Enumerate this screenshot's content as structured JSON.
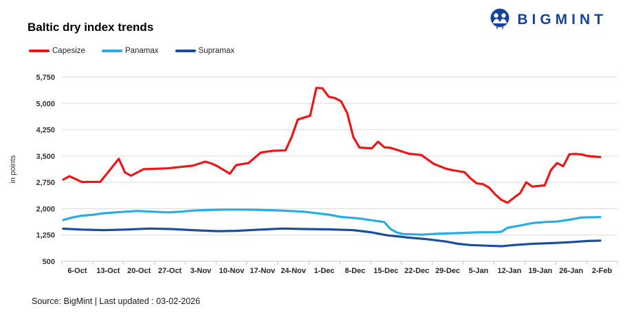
{
  "logo": {
    "text": "BIGMINT",
    "icon": "bigmint-emblem"
  },
  "title": "Baltic dry index trends",
  "footer": {
    "text": "Source: BigMint | Last updated : 03-02-2026"
  },
  "chart_data": {
    "type": "line",
    "title": "Baltic dry index trends",
    "xlabel": "",
    "ylabel": "in points",
    "ylim": [
      500,
      5750
    ],
    "ytick_step": 750,
    "ytick_labels": [
      "500",
      "1,250",
      "2,000",
      "2,750",
      "3,500",
      "4,250",
      "5,000",
      "5,750"
    ],
    "categories": [
      "6-Oct",
      "13-Oct",
      "20-Oct",
      "27-Oct",
      "3-Nov",
      "10-Nov",
      "17-Nov",
      "24-Nov",
      "1-Dec",
      "8-Dec",
      "15-Dec",
      "22-Dec",
      "29-Dec",
      "5-Jan",
      "12-Jan",
      "19-Jan",
      "26-Jan",
      "2-Feb"
    ],
    "x_unit": "trading days, 0 = chart start (early Oct), 87 = 2-Feb; weekly tick labels",
    "grid": "horizontal",
    "legend_position": "top-left",
    "gridline_color": "#D9D9D9",
    "axis_text_color": "#333333",
    "series": [
      {
        "name": "Capesize",
        "color": "#ED1515",
        "points": [
          [
            0,
            2830
          ],
          [
            1,
            2925
          ],
          [
            3,
            2760
          ],
          [
            6,
            2765
          ],
          [
            9,
            3420
          ],
          [
            10,
            3030
          ],
          [
            11,
            2940
          ],
          [
            13,
            3125
          ],
          [
            17,
            3150
          ],
          [
            19,
            3190
          ],
          [
            21,
            3225
          ],
          [
            23,
            3340
          ],
          [
            24,
            3290
          ],
          [
            25,
            3210
          ],
          [
            27,
            2995
          ],
          [
            28,
            3240
          ],
          [
            30,
            3300
          ],
          [
            32,
            3600
          ],
          [
            34,
            3650
          ],
          [
            36,
            3660
          ],
          [
            37,
            4040
          ],
          [
            38,
            4540
          ],
          [
            40,
            4650
          ],
          [
            41,
            5440
          ],
          [
            42,
            5430
          ],
          [
            43,
            5190
          ],
          [
            44,
            5150
          ],
          [
            45,
            5060
          ],
          [
            46,
            4730
          ],
          [
            47,
            4040
          ],
          [
            48,
            3740
          ],
          [
            50,
            3720
          ],
          [
            51,
            3910
          ],
          [
            52,
            3750
          ],
          [
            53,
            3735
          ],
          [
            54,
            3680
          ],
          [
            56,
            3565
          ],
          [
            58,
            3530
          ],
          [
            60,
            3280
          ],
          [
            62,
            3140
          ],
          [
            63,
            3100
          ],
          [
            65,
            3040
          ],
          [
            66,
            2860
          ],
          [
            67,
            2720
          ],
          [
            68,
            2700
          ],
          [
            69,
            2600
          ],
          [
            70,
            2405
          ],
          [
            71,
            2250
          ],
          [
            72,
            2170
          ],
          [
            73,
            2310
          ],
          [
            74,
            2440
          ],
          [
            75,
            2750
          ],
          [
            76,
            2630
          ],
          [
            78,
            2665
          ],
          [
            79,
            3100
          ],
          [
            80,
            3300
          ],
          [
            81,
            3210
          ],
          [
            82,
            3550
          ],
          [
            83,
            3560
          ],
          [
            84,
            3545
          ],
          [
            85,
            3500
          ],
          [
            87,
            3470
          ]
        ]
      },
      {
        "name": "Panamax",
        "color": "#29ABE3",
        "points": [
          [
            0,
            1680
          ],
          [
            1.5,
            1750
          ],
          [
            3,
            1800
          ],
          [
            5,
            1830
          ],
          [
            6.5,
            1870
          ],
          [
            8.5,
            1895
          ],
          [
            10,
            1915
          ],
          [
            12,
            1935
          ],
          [
            14.5,
            1915
          ],
          [
            17,
            1895
          ],
          [
            19,
            1915
          ],
          [
            21,
            1945
          ],
          [
            23,
            1960
          ],
          [
            25,
            1970
          ],
          [
            27,
            1975
          ],
          [
            31,
            1970
          ],
          [
            35,
            1950
          ],
          [
            39,
            1915
          ],
          [
            43,
            1830
          ],
          [
            45,
            1765
          ],
          [
            48,
            1720
          ],
          [
            50,
            1670
          ],
          [
            52,
            1620
          ],
          [
            53,
            1425
          ],
          [
            54,
            1325
          ],
          [
            55,
            1280
          ],
          [
            58,
            1260
          ],
          [
            61,
            1290
          ],
          [
            64,
            1305
          ],
          [
            67,
            1325
          ],
          [
            70,
            1330
          ],
          [
            71,
            1345
          ],
          [
            72,
            1455
          ],
          [
            74,
            1520
          ],
          [
            76,
            1590
          ],
          [
            78,
            1620
          ],
          [
            80,
            1635
          ],
          [
            82,
            1685
          ],
          [
            84,
            1750
          ],
          [
            87,
            1760
          ]
        ]
      },
      {
        "name": "Supramax",
        "color": "#1B4D9E",
        "points": [
          [
            0,
            1430
          ],
          [
            3,
            1405
          ],
          [
            6.5,
            1390
          ],
          [
            10,
            1405
          ],
          [
            14,
            1435
          ],
          [
            17.5,
            1420
          ],
          [
            21,
            1390
          ],
          [
            25,
            1360
          ],
          [
            28,
            1370
          ],
          [
            32,
            1405
          ],
          [
            35.5,
            1435
          ],
          [
            39,
            1420
          ],
          [
            43,
            1410
          ],
          [
            47,
            1390
          ],
          [
            50,
            1325
          ],
          [
            52.5,
            1240
          ],
          [
            54,
            1215
          ],
          [
            56,
            1175
          ],
          [
            59,
            1130
          ],
          [
            62,
            1065
          ],
          [
            64,
            1000
          ],
          [
            66,
            965
          ],
          [
            69,
            945
          ],
          [
            71,
            930
          ],
          [
            73,
            965
          ],
          [
            76,
            1000
          ],
          [
            79,
            1020
          ],
          [
            82,
            1045
          ],
          [
            85,
            1080
          ],
          [
            87,
            1090
          ]
        ]
      }
    ]
  }
}
